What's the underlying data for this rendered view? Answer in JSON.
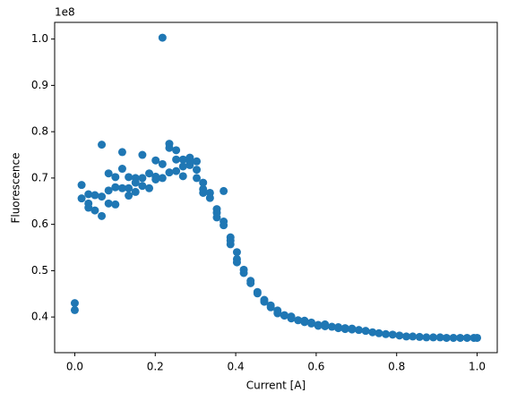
{
  "chart_data": {
    "type": "scatter",
    "x_label": "Current [A]",
    "y_label": "Fluorescence",
    "y_offset_label": "1e8",
    "color": "#1f77b4",
    "x": [
      0,
      0,
      0.017,
      0.017,
      0.034,
      0.034,
      0.034,
      0.05,
      0.05,
      0.067,
      0.067,
      0.067,
      0.084,
      0.084,
      0.084,
      0.101,
      0.101,
      0.101,
      0.118,
      0.118,
      0.118,
      0.134,
      0.134,
      0.134,
      0.151,
      0.151,
      0.151,
      0.168,
      0.168,
      0.168,
      0.185,
      0.185,
      0.201,
      0.201,
      0.201,
      0.218,
      0.218,
      0.218,
      0.235,
      0.235,
      0.235,
      0.252,
      0.252,
      0.252,
      0.269,
      0.269,
      0.269,
      0.286,
      0.286,
      0.286,
      0.303,
      0.303,
      0.303,
      0.319,
      0.319,
      0.319,
      0.336,
      0.336,
      0.353,
      0.353,
      0.353,
      0.37,
      0.37,
      0.37,
      0.387,
      0.387,
      0.387,
      0.403,
      0.403,
      0.403,
      0.42,
      0.42,
      0.437,
      0.437,
      0.454,
      0.454,
      0.471,
      0.471,
      0.487,
      0.487,
      0.504,
      0.504,
      0.521,
      0.521,
      0.538,
      0.538,
      0.555,
      0.571,
      0.571,
      0.588,
      0.588,
      0.605,
      0.605,
      0.622,
      0.622,
      0.639,
      0.655,
      0.655,
      0.672,
      0.672,
      0.689,
      0.689,
      0.706,
      0.723,
      0.74,
      0.756,
      0.773,
      0.79,
      0.807,
      0.824,
      0.84,
      0.857,
      0.874,
      0.891,
      0.908,
      0.924,
      0.941,
      0.958,
      0.975,
      0.992,
      1.0
    ],
    "values": [
      0.43,
      0.415,
      0.685,
      0.656,
      0.665,
      0.645,
      0.636,
      0.663,
      0.63,
      0.772,
      0.66,
      0.618,
      0.71,
      0.673,
      0.645,
      0.702,
      0.68,
      0.643,
      0.756,
      0.72,
      0.678,
      0.702,
      0.678,
      0.662,
      0.7,
      0.69,
      0.67,
      0.75,
      0.7,
      0.683,
      0.71,
      0.678,
      0.738,
      0.703,
      0.697,
      1.003,
      0.73,
      0.7,
      0.774,
      0.765,
      0.712,
      0.76,
      0.74,
      0.715,
      0.74,
      0.725,
      0.704,
      0.744,
      0.735,
      0.728,
      0.736,
      0.718,
      0.7,
      0.69,
      0.676,
      0.668,
      0.668,
      0.657,
      0.633,
      0.625,
      0.615,
      0.672,
      0.606,
      0.598,
      0.572,
      0.565,
      0.557,
      0.54,
      0.525,
      0.518,
      0.502,
      0.495,
      0.478,
      0.473,
      0.454,
      0.451,
      0.437,
      0.433,
      0.425,
      0.421,
      0.414,
      0.408,
      0.404,
      0.403,
      0.401,
      0.397,
      0.393,
      0.392,
      0.389,
      0.388,
      0.386,
      0.383,
      0.381,
      0.384,
      0.38,
      0.379,
      0.378,
      0.376,
      0.376,
      0.374,
      0.375,
      0.373,
      0.372,
      0.37,
      0.367,
      0.365,
      0.363,
      0.362,
      0.36,
      0.358,
      0.358,
      0.357,
      0.356,
      0.356,
      0.356,
      0.355,
      0.355,
      0.355,
      0.355,
      0.355,
      0.355
    ],
    "xlim": [
      -0.05,
      1.05
    ],
    "xticks": [
      {
        "value": 0,
        "label": "0.0"
      },
      0.2,
      0.4,
      0.6,
      0.8,
      {
        "value": 1,
        "label": "1.0"
      }
    ],
    "ylim": [
      0.323,
      1.036
    ],
    "yticks": [
      0.4,
      0.5,
      0.6,
      0.7,
      0.8,
      0.9,
      {
        "value": 1,
        "label": "1.0"
      }
    ]
  }
}
